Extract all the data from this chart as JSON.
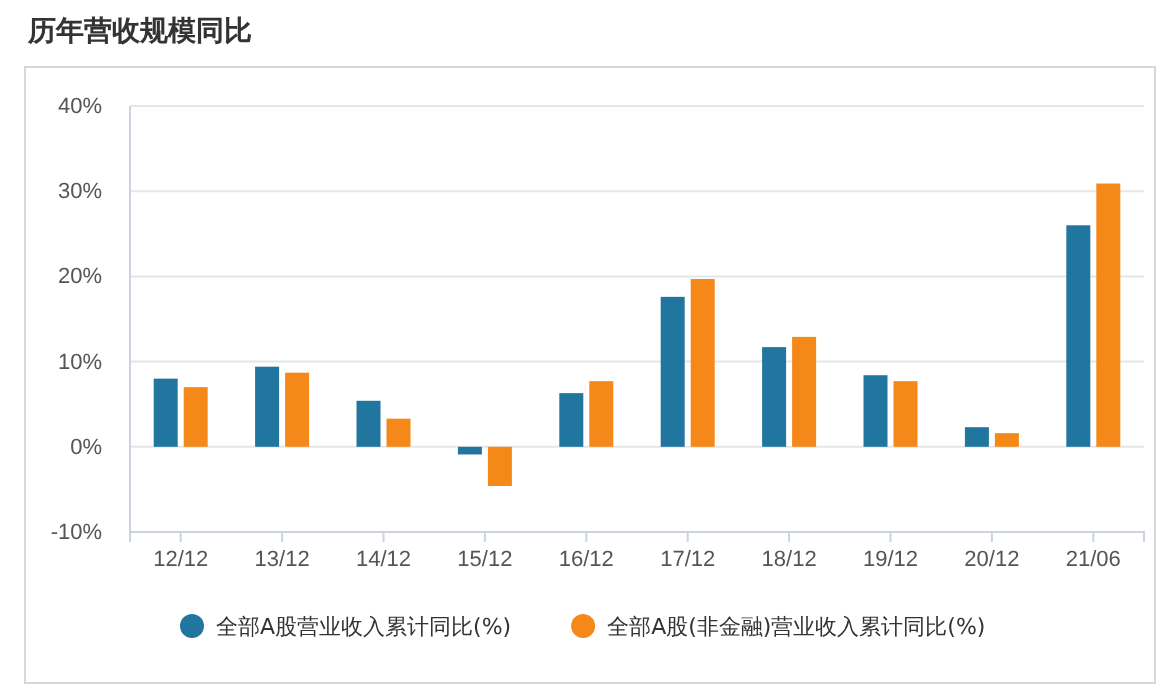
{
  "chart_data": {
    "type": "bar",
    "title": "历年营收规模同比",
    "categories": [
      "12/12",
      "13/12",
      "14/12",
      "15/12",
      "16/12",
      "17/12",
      "18/12",
      "19/12",
      "20/12",
      "21/06"
    ],
    "series": [
      {
        "name": "全部A股营业收入累计同比(%)",
        "color": "#21769f",
        "values": [
          8.0,
          9.4,
          5.4,
          -0.9,
          6.3,
          17.6,
          11.7,
          8.4,
          2.3,
          26.0
        ]
      },
      {
        "name": "全部A股(非金融)营业收入累计同比(%)",
        "color": "#f4891a",
        "values": [
          7.0,
          8.7,
          3.3,
          -4.6,
          7.7,
          19.7,
          12.9,
          7.7,
          1.6,
          30.9
        ]
      }
    ],
    "ylim": [
      -10,
      40
    ],
    "yticks": [
      {
        "value": -10,
        "label": "-10%"
      },
      {
        "value": 0,
        "label": "0%"
      },
      {
        "value": 10,
        "label": "10%"
      },
      {
        "value": 20,
        "label": "20%"
      },
      {
        "value": 30,
        "label": "30%"
      },
      {
        "value": 40,
        "label": "40%"
      }
    ],
    "grid": "y",
    "legend": "bottom"
  }
}
